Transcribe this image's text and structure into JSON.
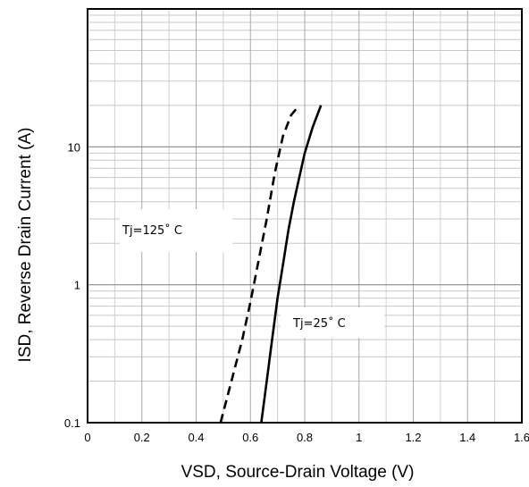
{
  "chart_data": {
    "type": "line",
    "title": "",
    "xlabel": "VSD, Source-Drain Voltage (V)",
    "ylabel": "ISD, Reverse Drain Current (A)",
    "xlim": [
      0,
      1.6
    ],
    "ylim": [
      0.1,
      100
    ],
    "yscale": "log",
    "grid": true,
    "xticks": [
      "0",
      "0.2",
      "0.4",
      "0.6",
      "0.8",
      "1",
      "1.2",
      "1.4",
      "1.6"
    ],
    "yticks": [
      "0.1",
      "1",
      "10"
    ],
    "series": [
      {
        "label": "Tj=125˚ C",
        "line_style": "dashed",
        "color": "#000000",
        "x": [
          0.49,
          0.53,
          0.57,
          0.6,
          0.63,
          0.66,
          0.69,
          0.72,
          0.75,
          0.77
        ],
        "y": [
          0.1,
          0.2,
          0.4,
          0.75,
          1.5,
          3.0,
          6.5,
          12.0,
          17.0,
          19.0
        ]
      },
      {
        "label": "Tj=25˚ C",
        "line_style": "solid",
        "color": "#000000",
        "x": [
          0.64,
          0.66,
          0.68,
          0.7,
          0.72,
          0.74,
          0.76,
          0.78,
          0.8,
          0.83,
          0.86
        ],
        "y": [
          0.1,
          0.2,
          0.4,
          0.8,
          1.4,
          2.5,
          4.0,
          6.0,
          9.0,
          14.0,
          20.0
        ]
      }
    ],
    "annotations": [
      {
        "text": "Tj=125˚ C",
        "series": 0
      },
      {
        "text": "Tj=25˚ C",
        "series": 1
      }
    ]
  }
}
